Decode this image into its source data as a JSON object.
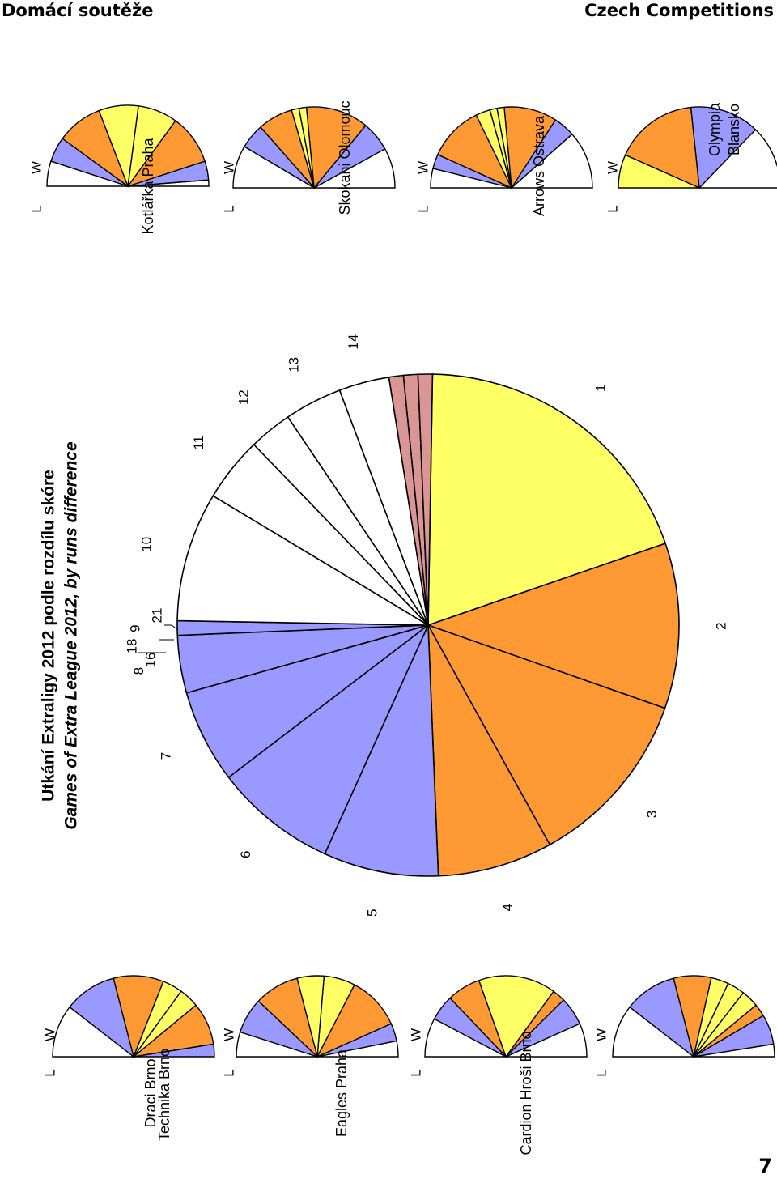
{
  "header": {
    "left": "Domácí soutěže",
    "right": "Czech Competitions",
    "page_number": "7"
  },
  "colors": {
    "yellow": "#FFFF66",
    "orange": "#FF9933",
    "blue": "#9999FF",
    "white": "#FFFFFF",
    "pink": "#D99694"
  },
  "chart_data": [
    {
      "type": "pie",
      "title": "Utkání Extraligy 2012 podle rozdílu skóre",
      "subtitle": "Games of Extra League 2012, by runs difference",
      "slices": [
        {
          "label": "1",
          "value": 21,
          "color": "yellow"
        },
        {
          "label": "2",
          "value": 11.5,
          "color": "orange"
        },
        {
          "label": "3",
          "value": 12.5,
          "color": "orange"
        },
        {
          "label": "4",
          "value": 8,
          "color": "orange"
        },
        {
          "label": "5",
          "value": 8,
          "color": "blue"
        },
        {
          "label": "6",
          "value": 8.5,
          "color": "blue"
        },
        {
          "label": "7",
          "value": 6.5,
          "color": "blue"
        },
        {
          "label": "8",
          "value": 4,
          "color": "blue"
        },
        {
          "label": "9",
          "value": 1,
          "color": "blue"
        },
        {
          "label": "10",
          "value": 9,
          "color": "white"
        },
        {
          "label": "11",
          "value": 4.5,
          "color": "white"
        },
        {
          "label": "12",
          "value": 3,
          "color": "white"
        },
        {
          "label": "13",
          "value": 4,
          "color": "white"
        },
        {
          "label": "14",
          "value": 3.5,
          "color": "white"
        },
        {
          "label": "16",
          "value": 1,
          "color": "pink"
        },
        {
          "label": "18",
          "value": 1,
          "color": "pink"
        },
        {
          "label": "21",
          "value": 1,
          "color": "pink"
        }
      ]
    },
    {
      "type": "pie",
      "title": "Draci Brno",
      "legend": {
        "L": "L",
        "W": "W"
      },
      "slices": [
        {
          "value": 5,
          "color": "blue"
        },
        {
          "value": 17,
          "color": "orange"
        },
        {
          "value": 8,
          "color": "yellow"
        },
        {
          "value": 8,
          "color": "yellow"
        },
        {
          "value": 20,
          "color": "orange"
        },
        {
          "value": 21,
          "color": "blue"
        },
        {
          "value": 21,
          "color": "white"
        }
      ]
    },
    {
      "type": "pie",
      "title": "Eagles Praha",
      "legend": {
        "L": "L",
        "W": "W"
      },
      "slices": [
        {
          "value": 7,
          "color": "white"
        },
        {
          "value": 8,
          "color": "blue"
        },
        {
          "value": 24,
          "color": "orange"
        },
        {
          "value": 14,
          "color": "yellow"
        },
        {
          "value": 12,
          "color": "yellow"
        },
        {
          "value": 20,
          "color": "orange"
        },
        {
          "value": 16,
          "color": "blue"
        },
        {
          "value": 11,
          "color": "white"
        }
      ]
    },
    {
      "type": "pie",
      "title": "Cardion Hroši Brno",
      "legend": {
        "L": "L",
        "W": "W"
      },
      "slices": [
        {
          "value": 13,
          "color": "white"
        },
        {
          "value": 11,
          "color": "blue"
        },
        {
          "value": 5,
          "color": "orange"
        },
        {
          "value": 30,
          "color": "yellow"
        },
        {
          "value": 13,
          "color": "orange"
        },
        {
          "value": 10,
          "color": "blue"
        },
        {
          "value": 15,
          "color": "white"
        }
      ]
    },
    {
      "type": "pie",
      "title": "Technika Brno",
      "legend": {
        "L": "L",
        "W": "W"
      },
      "slices": [
        {
          "value": 5,
          "color": "white"
        },
        {
          "value": 12,
          "color": "blue"
        },
        {
          "value": 5,
          "color": "orange"
        },
        {
          "value": 7,
          "color": "yellow"
        },
        {
          "value": 7,
          "color": "yellow"
        },
        {
          "value": 7,
          "color": "yellow"
        },
        {
          "value": 15,
          "color": "orange"
        },
        {
          "value": 21,
          "color": "blue"
        },
        {
          "value": 21,
          "color": "white"
        }
      ]
    },
    {
      "type": "pie",
      "title": "Kotlářka Praha",
      "legend": {
        "L": "L",
        "W": "W"
      },
      "slices": [
        {
          "value": 3,
          "color": "white"
        },
        {
          "value": 9,
          "color": "blue"
        },
        {
          "value": 24,
          "color": "orange"
        },
        {
          "value": 19,
          "color": "yellow"
        },
        {
          "value": 19,
          "color": "yellow"
        },
        {
          "value": 22,
          "color": "orange"
        },
        {
          "value": 12,
          "color": "blue"
        },
        {
          "value": 12,
          "color": "white"
        }
      ]
    },
    {
      "type": "pie",
      "title": "Skokani Olomouc",
      "legend": {
        "L": "L",
        "W": "W"
      },
      "slices": [
        {
          "value": 16,
          "color": "white"
        },
        {
          "value": 12,
          "color": "blue"
        },
        {
          "value": 25,
          "color": "orange"
        },
        {
          "value": 3,
          "color": "yellow"
        },
        {
          "value": 3,
          "color": "yellow"
        },
        {
          "value": 14,
          "color": "orange"
        },
        {
          "value": 10,
          "color": "blue"
        },
        {
          "value": 17,
          "color": "white"
        }
      ]
    },
    {
      "type": "pie",
      "title": "Arrows Ostrava",
      "legend": {
        "L": "L",
        "W": "W"
      },
      "slices": [
        {
          "value": 24,
          "color": "white"
        },
        {
          "value": 9,
          "color": "blue"
        },
        {
          "value": 22,
          "color": "orange"
        },
        {
          "value": 3,
          "color": "yellow"
        },
        {
          "value": 3,
          "color": "yellow"
        },
        {
          "value": 6,
          "color": "yellow"
        },
        {
          "value": 23,
          "color": "orange"
        },
        {
          "value": 6,
          "color": "blue"
        },
        {
          "value": 8,
          "color": "white"
        }
      ]
    },
    {
      "type": "pie",
      "title": "Olympia",
      "subtitle": "Blansko",
      "legend": {
        "L": "L",
        "W": "W"
      },
      "slices": [
        {
          "value": 23,
          "color": "white"
        },
        {
          "value": 25,
          "color": "blue"
        },
        {
          "value": 30,
          "color": "orange"
        },
        {
          "value": 12,
          "color": "yellow"
        }
      ]
    }
  ]
}
